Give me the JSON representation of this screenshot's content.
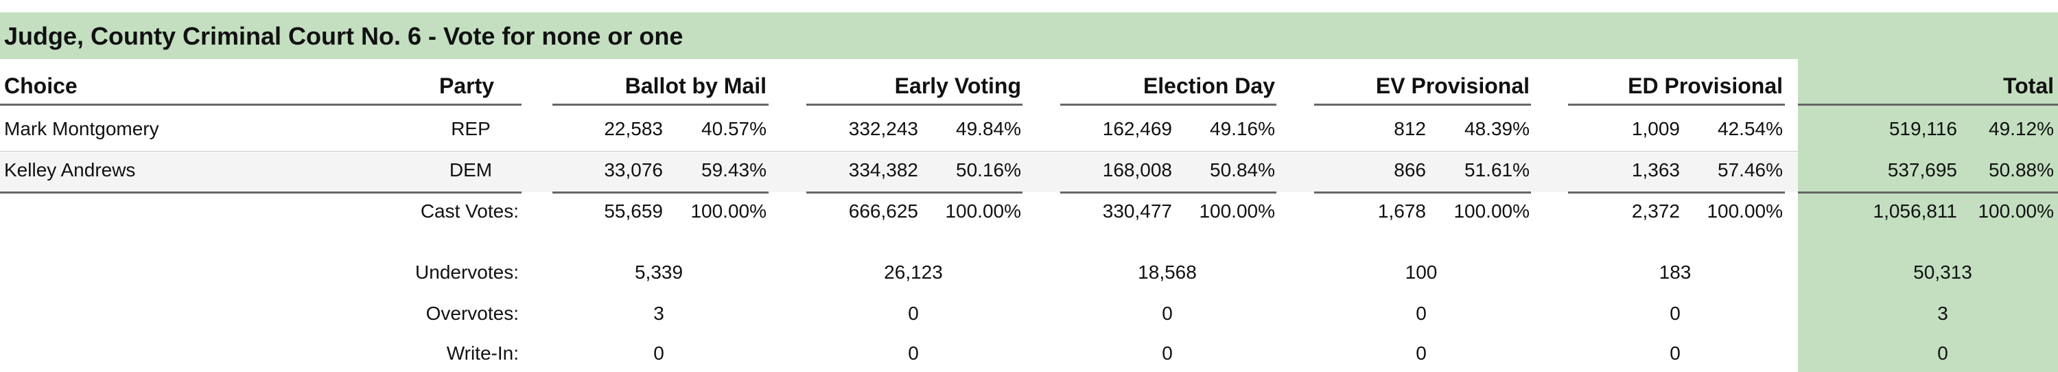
{
  "title": "Judge, County Criminal Court No. 6 - Vote for none or one",
  "headers": {
    "choice": "Choice",
    "party": "Party",
    "groups": [
      "Ballot by Mail",
      "Early Voting",
      "Election Day",
      "EV Provisional",
      "ED Provisional"
    ],
    "total": "Total"
  },
  "candidates": [
    {
      "name": "Mark Montgomery",
      "party": "REP",
      "votes": [
        "22,583",
        "332,243",
        "162,469",
        "812",
        "1,009"
      ],
      "pcts": [
        "40.57%",
        "49.84%",
        "49.16%",
        "48.39%",
        "42.54%"
      ],
      "total_votes": "519,116",
      "total_pct": "49.12%"
    },
    {
      "name": "Kelley Andrews",
      "party": "DEM",
      "votes": [
        "33,076",
        "334,382",
        "168,008",
        "866",
        "1,363"
      ],
      "pcts": [
        "59.43%",
        "50.16%",
        "50.84%",
        "51.61%",
        "57.46%"
      ],
      "total_votes": "537,695",
      "total_pct": "50.88%"
    }
  ],
  "cast_votes": {
    "label": "Cast Votes:",
    "votes": [
      "55,659",
      "666,625",
      "330,477",
      "1,678",
      "2,372"
    ],
    "pcts": [
      "100.00%",
      "100.00%",
      "100.00%",
      "100.00%",
      "100.00%"
    ],
    "total_votes": "1,056,811",
    "total_pct": "100.00%"
  },
  "extra_rows": [
    {
      "label": "Undervotes:",
      "values": [
        "5,339",
        "26,123",
        "18,568",
        "100",
        "183"
      ],
      "total": "50,313"
    },
    {
      "label": "Overvotes:",
      "values": [
        "3",
        "0",
        "0",
        "0",
        "0"
      ],
      "total": "3"
    },
    {
      "label": "Write-In:",
      "values": [
        "0",
        "0",
        "0",
        "0",
        "0"
      ],
      "total": "0"
    }
  ],
  "colors": {
    "accent_green": "#c3dfc0",
    "row_alt": "#f4f4f4",
    "rule": "#666666"
  }
}
